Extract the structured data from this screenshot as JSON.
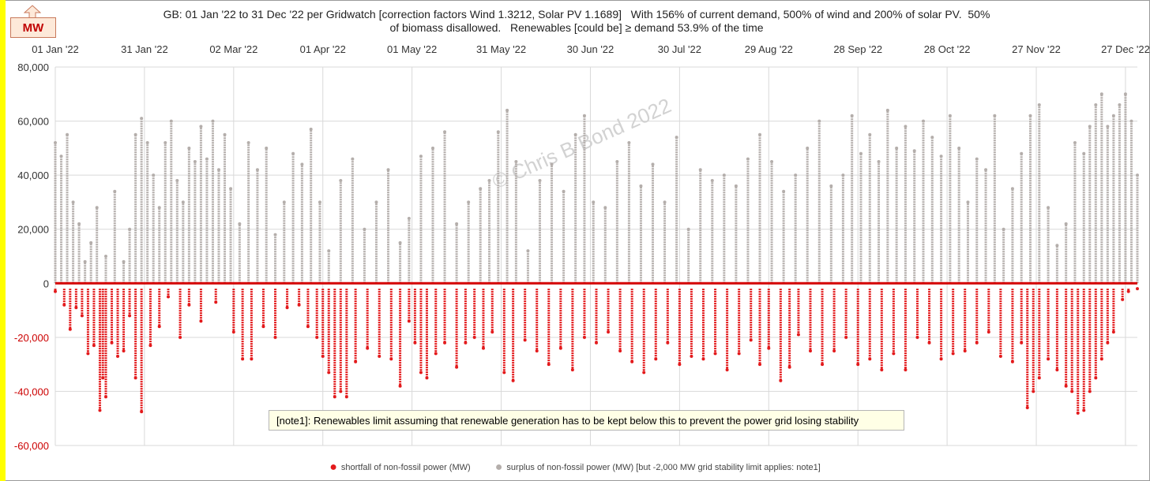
{
  "badge": {
    "label": "MW"
  },
  "title": {
    "line1": "GB: 01 Jan '22 to 31 Dec '22 per Gridwatch [correction factors Wind 1.3212, Solar PV 1.1689]   With 156% of current demand, 500% of wind and 200% of solar PV.  50%",
    "line2": "of biomass disallowed.   Renewables [could be] ≥ demand 53.9% of the time"
  },
  "watermark": "© Chris B Bond  2022",
  "note": "[note1]: Renewables limit assuming that renewable generation has to be kept below this to prevent the power grid losing stability",
  "colors": {
    "shortfall": "#e31a1c",
    "surplus": "#b4aeab",
    "zero_line": "#d40000",
    "negative_tick": "#cc0000"
  },
  "chart_data": {
    "type": "scatter",
    "x_range": [
      "2022-01-01",
      "2022-12-31"
    ],
    "ylim": [
      -60000,
      80000
    ],
    "y_ticks": [
      80000,
      60000,
      40000,
      20000,
      0,
      -20000,
      -40000,
      -60000
    ],
    "y_tick_labels": [
      "80,000",
      "60,000",
      "40,000",
      "20,000",
      "0",
      "-20,000",
      "-40,000",
      "-60,000"
    ],
    "x_ticks": [
      "2022-01-01",
      "2022-01-31",
      "2022-03-02",
      "2022-04-01",
      "2022-05-01",
      "2022-05-31",
      "2022-06-30",
      "2022-07-30",
      "2022-08-29",
      "2022-09-28",
      "2022-10-28",
      "2022-11-27",
      "2022-12-27"
    ],
    "x_tick_labels": [
      "01 Jan '22",
      "31 Jan '22",
      "02 Mar '22",
      "01 Apr '22",
      "01 May '22",
      "31 May '22",
      "30 Jun '22",
      "30 Jul '22",
      "29 Aug '22",
      "28 Sep '22",
      "28 Oct '22",
      "27 Nov '22",
      "27 Dec '22"
    ],
    "grid": true,
    "legend_position": "bottom",
    "grid_stability_limit": -2000,
    "series": [
      {
        "name": "shortfall of non-fossil power (MW)",
        "color": "#e31a1c",
        "x": [
          "2022-01-01",
          "2022-01-04",
          "2022-01-06",
          "2022-01-08",
          "2022-01-10",
          "2022-01-12",
          "2022-01-14",
          "2022-01-16",
          "2022-01-17",
          "2022-01-18",
          "2022-01-20",
          "2022-01-22",
          "2022-01-24",
          "2022-01-26",
          "2022-01-28",
          "2022-01-30",
          "2022-02-02",
          "2022-02-05",
          "2022-02-08",
          "2022-02-12",
          "2022-02-15",
          "2022-02-19",
          "2022-02-24",
          "2022-03-02",
          "2022-03-05",
          "2022-03-08",
          "2022-03-12",
          "2022-03-16",
          "2022-03-20",
          "2022-03-24",
          "2022-03-27",
          "2022-03-30",
          "2022-04-01",
          "2022-04-03",
          "2022-04-05",
          "2022-04-07",
          "2022-04-09",
          "2022-04-12",
          "2022-04-16",
          "2022-04-20",
          "2022-04-24",
          "2022-04-27",
          "2022-04-30",
          "2022-05-02",
          "2022-05-04",
          "2022-05-06",
          "2022-05-09",
          "2022-05-12",
          "2022-05-16",
          "2022-05-19",
          "2022-05-22",
          "2022-05-25",
          "2022-05-28",
          "2022-06-01",
          "2022-06-04",
          "2022-06-08",
          "2022-06-12",
          "2022-06-16",
          "2022-06-20",
          "2022-06-24",
          "2022-06-28",
          "2022-07-02",
          "2022-07-06",
          "2022-07-10",
          "2022-07-14",
          "2022-07-18",
          "2022-07-22",
          "2022-07-26",
          "2022-07-30",
          "2022-08-03",
          "2022-08-07",
          "2022-08-11",
          "2022-08-15",
          "2022-08-19",
          "2022-08-23",
          "2022-08-26",
          "2022-08-29",
          "2022-09-02",
          "2022-09-05",
          "2022-09-08",
          "2022-09-12",
          "2022-09-16",
          "2022-09-20",
          "2022-09-24",
          "2022-09-28",
          "2022-10-02",
          "2022-10-06",
          "2022-10-10",
          "2022-10-14",
          "2022-10-18",
          "2022-10-22",
          "2022-10-26",
          "2022-10-30",
          "2022-11-03",
          "2022-11-07",
          "2022-11-11",
          "2022-11-15",
          "2022-11-19",
          "2022-11-22",
          "2022-11-24",
          "2022-11-26",
          "2022-11-28",
          "2022-12-01",
          "2022-12-04",
          "2022-12-07",
          "2022-12-09",
          "2022-12-11",
          "2022-12-13",
          "2022-12-15",
          "2022-12-17",
          "2022-12-19",
          "2022-12-21",
          "2022-12-23",
          "2022-12-26",
          "2022-12-28",
          "2022-12-31"
        ],
        "y": [
          -3000,
          -8000,
          -17000,
          -9000,
          -12000,
          -26000,
          -23000,
          -47000,
          -35000,
          -42000,
          -22000,
          -27000,
          -25000,
          -12000,
          -35000,
          -47500,
          -23000,
          -16000,
          -5000,
          -20000,
          -8000,
          -14000,
          -7000,
          -18000,
          -28000,
          -28000,
          -16000,
          -20000,
          -9000,
          -8000,
          -16000,
          -20000,
          -27000,
          -33000,
          -42000,
          -40000,
          -42000,
          -29000,
          -24000,
          -27000,
          -28000,
          -38000,
          -14000,
          -22000,
          -33000,
          -35000,
          -26000,
          -22000,
          -31000,
          -22000,
          -20000,
          -24000,
          -18000,
          -33000,
          -36000,
          -21000,
          -25000,
          -30000,
          -24000,
          -32000,
          -20000,
          -22000,
          -18000,
          -25000,
          -29000,
          -33000,
          -28000,
          -22000,
          -30000,
          -27000,
          -28000,
          -26000,
          -32000,
          -26000,
          -21000,
          -30000,
          -24000,
          -36000,
          -31000,
          -19000,
          -25000,
          -30000,
          -25000,
          -20000,
          -30000,
          -28000,
          -32000,
          -26000,
          -32000,
          -20000,
          -22000,
          -28000,
          -26000,
          -25000,
          -22000,
          -18000,
          -27000,
          -29000,
          -22000,
          -46000,
          -40000,
          -35000,
          -28000,
          -32000,
          -38000,
          -40000,
          -48000,
          -47000,
          -40000,
          -35000,
          -28000,
          -22000,
          -18000,
          -6000,
          -3000,
          -2000
        ]
      },
      {
        "name": "surplus of non-fossil power (MW) [but -2,000 MW grid stability limit applies: note1]",
        "color": "#b4aeab",
        "x": [
          "2022-01-01",
          "2022-01-03",
          "2022-01-05",
          "2022-01-07",
          "2022-01-09",
          "2022-01-11",
          "2022-01-13",
          "2022-01-15",
          "2022-01-18",
          "2022-01-21",
          "2022-01-24",
          "2022-01-26",
          "2022-01-28",
          "2022-01-30",
          "2022-02-01",
          "2022-02-03",
          "2022-02-05",
          "2022-02-07",
          "2022-02-09",
          "2022-02-11",
          "2022-02-13",
          "2022-02-15",
          "2022-02-17",
          "2022-02-19",
          "2022-02-21",
          "2022-02-23",
          "2022-02-25",
          "2022-02-27",
          "2022-03-01",
          "2022-03-04",
          "2022-03-07",
          "2022-03-10",
          "2022-03-13",
          "2022-03-16",
          "2022-03-19",
          "2022-03-22",
          "2022-03-25",
          "2022-03-28",
          "2022-03-31",
          "2022-04-03",
          "2022-04-07",
          "2022-04-11",
          "2022-04-15",
          "2022-04-19",
          "2022-04-23",
          "2022-04-27",
          "2022-04-30",
          "2022-05-04",
          "2022-05-08",
          "2022-05-12",
          "2022-05-16",
          "2022-05-20",
          "2022-05-24",
          "2022-05-27",
          "2022-05-30",
          "2022-06-02",
          "2022-06-05",
          "2022-06-09",
          "2022-06-13",
          "2022-06-17",
          "2022-06-21",
          "2022-06-25",
          "2022-06-28",
          "2022-07-01",
          "2022-07-05",
          "2022-07-09",
          "2022-07-13",
          "2022-07-17",
          "2022-07-21",
          "2022-07-25",
          "2022-07-29",
          "2022-08-02",
          "2022-08-06",
          "2022-08-10",
          "2022-08-14",
          "2022-08-18",
          "2022-08-22",
          "2022-08-26",
          "2022-08-30",
          "2022-09-03",
          "2022-09-07",
          "2022-09-11",
          "2022-09-15",
          "2022-09-19",
          "2022-09-23",
          "2022-09-26",
          "2022-09-29",
          "2022-10-02",
          "2022-10-05",
          "2022-10-08",
          "2022-10-11",
          "2022-10-14",
          "2022-10-17",
          "2022-10-20",
          "2022-10-23",
          "2022-10-26",
          "2022-10-29",
          "2022-11-01",
          "2022-11-04",
          "2022-11-07",
          "2022-11-10",
          "2022-11-13",
          "2022-11-16",
          "2022-11-19",
          "2022-11-22",
          "2022-11-25",
          "2022-11-28",
          "2022-12-01",
          "2022-12-04",
          "2022-12-07",
          "2022-12-10",
          "2022-12-13",
          "2022-12-15",
          "2022-12-17",
          "2022-12-19",
          "2022-12-21",
          "2022-12-23",
          "2022-12-25",
          "2022-12-27",
          "2022-12-29",
          "2022-12-31"
        ],
        "y": [
          52000,
          47000,
          55000,
          30000,
          22000,
          8000,
          15000,
          28000,
          10000,
          34000,
          8000,
          20000,
          55000,
          61000,
          52000,
          40000,
          28000,
          52000,
          60000,
          38000,
          30000,
          50000,
          45000,
          58000,
          46000,
          60000,
          42000,
          55000,
          35000,
          22000,
          52000,
          42000,
          50000,
          18000,
          30000,
          48000,
          44000,
          57000,
          30000,
          12000,
          38000,
          46000,
          20000,
          30000,
          42000,
          15000,
          24000,
          47000,
          50000,
          56000,
          22000,
          30000,
          35000,
          38000,
          56000,
          64000,
          45000,
          12000,
          38000,
          44000,
          34000,
          55000,
          62000,
          30000,
          28000,
          45000,
          52000,
          36000,
          44000,
          30000,
          54000,
          20000,
          42000,
          38000,
          40000,
          36000,
          46000,
          55000,
          45000,
          34000,
          40000,
          50000,
          60000,
          36000,
          40000,
          62000,
          48000,
          55000,
          45000,
          64000,
          50000,
          58000,
          49000,
          60000,
          54000,
          47000,
          62000,
          50000,
          30000,
          46000,
          42000,
          62000,
          20000,
          35000,
          48000,
          62000,
          66000,
          28000,
          14000,
          22000,
          52000,
          48000,
          58000,
          66000,
          70000,
          58000,
          62000,
          66000,
          70000,
          60000,
          40000
        ]
      }
    ]
  }
}
